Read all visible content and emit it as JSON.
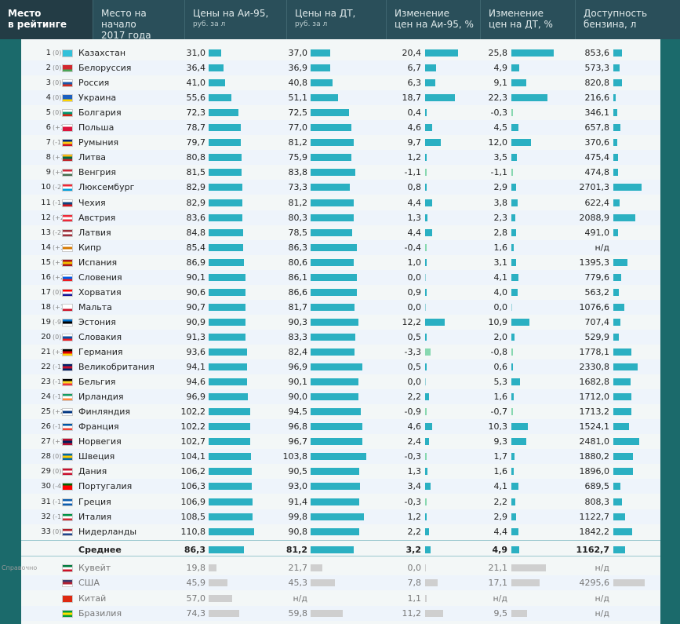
{
  "header": [
    {
      "title": "Место",
      "title2": "в рейтинге",
      "active": true
    },
    {
      "title": "Место на начало",
      "title2": "2017 года"
    },
    {
      "title": "Цены на Аи-95,",
      "sub": "руб. за л"
    },
    {
      "title": "Цены на ДТ,",
      "sub": "руб. за л"
    },
    {
      "title": "Изменение",
      "title2": "цен на Аи-95, %"
    },
    {
      "title": "Изменение",
      "title2": "цен на ДТ, %"
    },
    {
      "title": "Доступность",
      "title2": "бензина, л"
    }
  ],
  "rows": [
    {
      "rank": "1",
      "chg": "(0)",
      "name": "Казахстан",
      "ai95": 31.0,
      "ai95_t": "31,0",
      "dt": 37.0,
      "dt_t": "37,0",
      "pa": 20.4,
      "pa_t": "20,4",
      "pd": 25.8,
      "pd_t": "25,8",
      "acc": 853.6,
      "acc_t": "853,6",
      "flag": [
        "#33c1d9",
        "#33c1d9",
        "#33c1d9"
      ]
    },
    {
      "rank": "2",
      "chg": "(0)",
      "name": "Белоруссия",
      "ai95": 36.4,
      "ai95_t": "36,4",
      "dt": 36.9,
      "dt_t": "36,9",
      "pa": 6.7,
      "pa_t": "6,7",
      "pd": 4.9,
      "pd_t": "4,9",
      "acc": 573.3,
      "acc_t": "573,3",
      "flag": [
        "#d22730",
        "#d22730",
        "#4aa657"
      ]
    },
    {
      "rank": "3",
      "chg": "(0)",
      "name": "Россия",
      "ai95": 41.0,
      "ai95_t": "41,0",
      "dt": 40.8,
      "dt_t": "40,8",
      "pa": 6.3,
      "pa_t": "6,3",
      "pd": 9.1,
      "pd_t": "9,1",
      "acc": 820.8,
      "acc_t": "820,8",
      "flag": [
        "#ffffff",
        "#1c57a7",
        "#d52b1e"
      ]
    },
    {
      "rank": "4",
      "chg": "(0)",
      "name": "Украина",
      "ai95": 55.6,
      "ai95_t": "55,6",
      "dt": 51.1,
      "dt_t": "51,1",
      "pa": 18.7,
      "pa_t": "18,7",
      "pd": 22.3,
      "pd_t": "22,3",
      "acc": 216.6,
      "acc_t": "216,6",
      "flag": [
        "#1c5fbf",
        "#1c5fbf",
        "#ffd500"
      ]
    },
    {
      "rank": "5",
      "chg": "(0)",
      "name": "Болгария",
      "ai95": 72.3,
      "ai95_t": "72,3",
      "dt": 72.5,
      "dt_t": "72,5",
      "pa": 0.4,
      "pa_t": "0,4",
      "pd": -0.3,
      "pd_t": "-0,3",
      "acc": 346.1,
      "acc_t": "346,1",
      "flag": [
        "#ffffff",
        "#00966e",
        "#d62612"
      ]
    },
    {
      "rank": "6",
      "chg": "(+1)",
      "name": "Польша",
      "ai95": 78.7,
      "ai95_t": "78,7",
      "dt": 77.0,
      "dt_t": "77,0",
      "pa": 4.6,
      "pa_t": "4,6",
      "pd": 4.5,
      "pd_t": "4,5",
      "acc": 657.8,
      "acc_t": "657,8",
      "flag": [
        "#ffffff",
        "#dc143c",
        "#dc143c"
      ]
    },
    {
      "rank": "7",
      "chg": "(-1)",
      "name": "Румыния",
      "ai95": 79.7,
      "ai95_t": "79,7",
      "dt": 81.2,
      "dt_t": "81,2",
      "pa": 9.7,
      "pa_t": "9,7",
      "pd": 12.0,
      "pd_t": "12,0",
      "acc": 370.6,
      "acc_t": "370,6",
      "flag": [
        "#002b7f",
        "#fcd116",
        "#ce1126"
      ]
    },
    {
      "rank": "8",
      "chg": "(+1)",
      "name": "Литва",
      "ai95": 80.8,
      "ai95_t": "80,8",
      "dt": 75.9,
      "dt_t": "75,9",
      "pa": 1.2,
      "pa_t": "1,2",
      "pd": 3.5,
      "pd_t": "3,5",
      "acc": 475.4,
      "acc_t": "475,4",
      "flag": [
        "#fdb913",
        "#006a44",
        "#c1272d"
      ]
    },
    {
      "rank": "9",
      "chg": "(+4)",
      "name": "Венгрия",
      "ai95": 81.5,
      "ai95_t": "81,5",
      "dt": 83.8,
      "dt_t": "83,8",
      "pa": -1.1,
      "pa_t": "-1,1",
      "pd": -1.1,
      "pd_t": "-1,1",
      "acc": 474.8,
      "acc_t": "474,8",
      "flag": [
        "#ce2939",
        "#ffffff",
        "#477050"
      ]
    },
    {
      "rank": "10",
      "chg": "(-2)",
      "name": "Люксембург",
      "ai95": 82.9,
      "ai95_t": "82,9",
      "dt": 73.3,
      "dt_t": "73,3",
      "pa": 0.8,
      "pa_t": "0,8",
      "pd": 2.9,
      "pd_t": "2,9",
      "acc": 2701.3,
      "acc_t": "2701,3",
      "flag": [
        "#ed2939",
        "#ffffff",
        "#00a1de"
      ]
    },
    {
      "rank": "11",
      "chg": "(-1)",
      "name": "Чехия",
      "ai95": 82.9,
      "ai95_t": "82,9",
      "dt": 81.2,
      "dt_t": "81,2",
      "pa": 4.4,
      "pa_t": "4,4",
      "pd": 3.8,
      "pd_t": "3,8",
      "acc": 622.4,
      "acc_t": "622,4",
      "flag": [
        "#ffffff",
        "#11457e",
        "#d7141a"
      ]
    },
    {
      "rank": "12",
      "chg": "(+2)",
      "name": "Австрия",
      "ai95": 83.6,
      "ai95_t": "83,6",
      "dt": 80.3,
      "dt_t": "80,3",
      "pa": 1.3,
      "pa_t": "1,3",
      "pd": 2.3,
      "pd_t": "2,3",
      "acc": 2088.9,
      "acc_t": "2088,9",
      "flag": [
        "#ed2939",
        "#ffffff",
        "#ed2939"
      ]
    },
    {
      "rank": "13",
      "chg": "(-2)",
      "name": "Латвия",
      "ai95": 84.8,
      "ai95_t": "84,8",
      "dt": 78.5,
      "dt_t": "78,5",
      "pa": 4.4,
      "pa_t": "4,4",
      "pd": 2.8,
      "pd_t": "2,8",
      "acc": 491.0,
      "acc_t": "491,0",
      "flag": [
        "#9e3039",
        "#ffffff",
        "#9e3039"
      ]
    },
    {
      "rank": "14",
      "chg": "(+1)",
      "name": "Кипр",
      "ai95": 85.4,
      "ai95_t": "85,4",
      "dt": 86.3,
      "dt_t": "86,3",
      "pa": -0.4,
      "pa_t": "-0,4",
      "pd": 1.6,
      "pd_t": "1,6",
      "acc": "",
      "acc_t": "н/д",
      "flag": [
        "#ffffff",
        "#d57800",
        "#ffffff"
      ]
    },
    {
      "rank": "15",
      "chg": "(+1)",
      "name": "Испания",
      "ai95": 86.9,
      "ai95_t": "86,9",
      "dt": 80.6,
      "dt_t": "80,6",
      "pa": 1.0,
      "pa_t": "1,0",
      "pd": 3.1,
      "pd_t": "3,1",
      "acc": 1395.3,
      "acc_t": "1395,3",
      "flag": [
        "#aa151b",
        "#f1bf00",
        "#aa151b"
      ]
    },
    {
      "rank": "16",
      "chg": "(+2)",
      "name": "Словения",
      "ai95": 90.1,
      "ai95_t": "90,1",
      "dt": 86.1,
      "dt_t": "86,1",
      "pa": 0.0,
      "pa_t": "0,0",
      "pd": 4.1,
      "pd_t": "4,1",
      "acc": 779.6,
      "acc_t": "779,6",
      "flag": [
        "#ffffff",
        "#005ce6",
        "#ed1c24"
      ]
    },
    {
      "rank": "17",
      "chg": "(0)",
      "name": "Хорватия",
      "ai95": 90.6,
      "ai95_t": "90,6",
      "dt": 86.6,
      "dt_t": "86,6",
      "pa": 0.9,
      "pa_t": "0,9",
      "pd": 4.0,
      "pd_t": "4,0",
      "acc": 563.2,
      "acc_t": "563,2",
      "flag": [
        "#ff0000",
        "#ffffff",
        "#171796"
      ]
    },
    {
      "rank": "18",
      "chg": "(+1)",
      "name": "Мальта",
      "ai95": 90.7,
      "ai95_t": "90,7",
      "dt": 81.7,
      "dt_t": "81,7",
      "pa": 0.0,
      "pa_t": "0,0",
      "pd": 0.0,
      "pd_t": "0,0",
      "acc": 1076.6,
      "acc_t": "1076,6",
      "flag": [
        "#ffffff",
        "#ffffff",
        "#cf142b"
      ]
    },
    {
      "rank": "19",
      "chg": "(-9)",
      "name": "Эстония",
      "ai95": 90.9,
      "ai95_t": "90,9",
      "dt": 90.3,
      "dt_t": "90,3",
      "pa": 12.2,
      "pa_t": "12,2",
      "pd": 10.9,
      "pd_t": "10,9",
      "acc": 707.4,
      "acc_t": "707,4",
      "flag": [
        "#0072ce",
        "#000000",
        "#ffffff"
      ]
    },
    {
      "rank": "20",
      "chg": "(0)",
      "name": "Словакия",
      "ai95": 91.3,
      "ai95_t": "91,3",
      "dt": 83.3,
      "dt_t": "83,3",
      "pa": 0.5,
      "pa_t": "0,5",
      "pd": 2.0,
      "pd_t": "2,0",
      "acc": 529.9,
      "acc_t": "529,9",
      "flag": [
        "#ffffff",
        "#0b4ea2",
        "#ee1c25"
      ]
    },
    {
      "rank": "21",
      "chg": "(+3)",
      "name": "Германия",
      "ai95": 93.6,
      "ai95_t": "93,6",
      "dt": 82.4,
      "dt_t": "82,4",
      "pa": -3.3,
      "pa_t": "-3,3",
      "pd": -0.8,
      "pd_t": "-0,8",
      "acc": 1778.1,
      "acc_t": "1778,1",
      "flag": [
        "#000000",
        "#dd0000",
        "#ffce00"
      ]
    },
    {
      "rank": "22",
      "chg": "(-1)",
      "name": "Великобритания",
      "ai95": 94.1,
      "ai95_t": "94,1",
      "dt": 96.9,
      "dt_t": "96,9",
      "pa": 0.5,
      "pa_t": "0,5",
      "pd": 0.6,
      "pd_t": "0,6",
      "acc": 2330.8,
      "acc_t": "2330,8",
      "flag": [
        "#012169",
        "#c8102e",
        "#012169"
      ]
    },
    {
      "rank": "23",
      "chg": "(-1)",
      "name": "Бельгия",
      "ai95": 94.6,
      "ai95_t": "94,6",
      "dt": 90.1,
      "dt_t": "90,1",
      "pa": 0.0,
      "pa_t": "0,0",
      "pd": 5.3,
      "pd_t": "5,3",
      "acc": 1682.8,
      "acc_t": "1682,8",
      "flag": [
        "#000000",
        "#fdda24",
        "#ef3340"
      ]
    },
    {
      "rank": "24",
      "chg": "(-1)",
      "name": "Ирландия",
      "ai95": 96.9,
      "ai95_t": "96,9",
      "dt": 90.0,
      "dt_t": "90,0",
      "pa": 2.2,
      "pa_t": "2,2",
      "pd": 1.6,
      "pd_t": "1,6",
      "acc": 1712.0,
      "acc_t": "1712,0",
      "flag": [
        "#169b62",
        "#ffffff",
        "#ff883e"
      ]
    },
    {
      "rank": "25",
      "chg": "(+2)",
      "name": "Финляндия",
      "ai95": 102.2,
      "ai95_t": "102,2",
      "dt": 94.5,
      "dt_t": "94,5",
      "pa": -0.9,
      "pa_t": "-0,9",
      "pd": -0.7,
      "pd_t": "-0,7",
      "acc": 1713.2,
      "acc_t": "1713,2",
      "flag": [
        "#ffffff",
        "#003580",
        "#ffffff"
      ]
    },
    {
      "rank": "26",
      "chg": "(-1)",
      "name": "Франция",
      "ai95": 102.2,
      "ai95_t": "102,2",
      "dt": 96.8,
      "dt_t": "96,8",
      "pa": 4.6,
      "pa_t": "4,6",
      "pd": 10.3,
      "pd_t": "10,3",
      "acc": 1524.1,
      "acc_t": "1524,1",
      "flag": [
        "#0055a4",
        "#ffffff",
        "#ef4135"
      ]
    },
    {
      "rank": "27",
      "chg": "(+3)",
      "name": "Норвегия",
      "ai95": 102.7,
      "ai95_t": "102,7",
      "dt": 96.7,
      "dt_t": "96,7",
      "pa": 2.4,
      "pa_t": "2,4",
      "pd": 9.3,
      "pd_t": "9,3",
      "acc": 2481.0,
      "acc_t": "2481,0",
      "flag": [
        "#ba0c2f",
        "#00205b",
        "#ba0c2f"
      ]
    },
    {
      "rank": "28",
      "chg": "(0)",
      "name": "Швеция",
      "ai95": 104.1,
      "ai95_t": "104,1",
      "dt": 103.8,
      "dt_t": "103,8",
      "pa": -0.3,
      "pa_t": "-0,3",
      "pd": 1.7,
      "pd_t": "1,7",
      "acc": 1880.2,
      "acc_t": "1880,2",
      "flag": [
        "#006aa7",
        "#fecc00",
        "#006aa7"
      ]
    },
    {
      "rank": "29",
      "chg": "(0)",
      "name": "Дания",
      "ai95": 106.2,
      "ai95_t": "106,2",
      "dt": 90.5,
      "dt_t": "90,5",
      "pa": 1.3,
      "pa_t": "1,3",
      "pd": 1.6,
      "pd_t": "1,6",
      "acc": 1896.0,
      "acc_t": "1896,0",
      "flag": [
        "#c8102e",
        "#ffffff",
        "#c8102e"
      ]
    },
    {
      "rank": "30",
      "chg": "(-4)",
      "name": "Португалия",
      "ai95": 106.3,
      "ai95_t": "106,3",
      "dt": 93.0,
      "dt_t": "93,0",
      "pa": 3.4,
      "pa_t": "3,4",
      "pd": 4.1,
      "pd_t": "4,1",
      "acc": 689.5,
      "acc_t": "689,5",
      "flag": [
        "#006600",
        "#ff0000",
        "#ff0000"
      ]
    },
    {
      "rank": "31",
      "chg": "(-1)",
      "name": "Греция",
      "ai95": 106.9,
      "ai95_t": "106,9",
      "dt": 91.4,
      "dt_t": "91,4",
      "pa": -0.3,
      "pa_t": "-0,3",
      "pd": 2.2,
      "pd_t": "2,2",
      "acc": 808.3,
      "acc_t": "808,3",
      "flag": [
        "#0d5eaf",
        "#ffffff",
        "#0d5eaf"
      ]
    },
    {
      "rank": "32",
      "chg": "(-1)",
      "name": "Италия",
      "ai95": 108.5,
      "ai95_t": "108,5",
      "dt": 99.8,
      "dt_t": "99,8",
      "pa": 1.2,
      "pa_t": "1,2",
      "pd": 2.9,
      "pd_t": "2,9",
      "acc": 1122.7,
      "acc_t": "1122,7",
      "flag": [
        "#009246",
        "#ffffff",
        "#ce2b37"
      ]
    },
    {
      "rank": "33",
      "chg": "(0)",
      "name": "Нидерланды",
      "ai95": 110.8,
      "ai95_t": "110,8",
      "dt": 90.8,
      "dt_t": "90,8",
      "pa": 2.2,
      "pa_t": "2,2",
      "pd": 4.4,
      "pd_t": "4,4",
      "acc": 1842.2,
      "acc_t": "1842,2",
      "flag": [
        "#ae1c28",
        "#ffffff",
        "#21468b"
      ]
    }
  ],
  "average": {
    "label": "Среднее",
    "ai95": 86.3,
    "ai95_t": "86,3",
    "dt": 81.2,
    "dt_t": "81,2",
    "pa": 3.2,
    "pa_t": "3,2",
    "pd": 4.9,
    "pd_t": "4,9",
    "acc": 1162.7,
    "acc_t": "1162,7"
  },
  "reference_label": "Справочно",
  "reference": [
    {
      "name": "Кувейт",
      "ai95": 19.8,
      "ai95_t": "19,8",
      "dt": 21.7,
      "dt_t": "21,7",
      "pa": 0.0,
      "pa_t": "0,0",
      "pd": 21.1,
      "pd_t": "21,1",
      "acc": "",
      "acc_t": "н/д",
      "flag": [
        "#007a3d",
        "#ffffff",
        "#ce1126"
      ]
    },
    {
      "name": "США",
      "ai95": 45.9,
      "ai95_t": "45,9",
      "dt": 45.3,
      "dt_t": "45,3",
      "pa": 7.8,
      "pa_t": "7,8",
      "pd": 17.1,
      "pd_t": "17,1",
      "acc": 4295.6,
      "acc_t": "4295,6",
      "flag": [
        "#3c3b6e",
        "#b22234",
        "#ffffff"
      ]
    },
    {
      "name": "Китай",
      "ai95": 57.0,
      "ai95_t": "57,0",
      "dt": "",
      "dt_t": "н/д",
      "pa": 1.1,
      "pa_t": "1,1",
      "pd": "",
      "pd_t": "н/д",
      "acc": "",
      "acc_t": "н/д",
      "flag": [
        "#de2910",
        "#de2910",
        "#de2910"
      ]
    },
    {
      "name": "Бразилия",
      "ai95": 74.3,
      "ai95_t": "74,3",
      "dt": 59.8,
      "dt_t": "59,8",
      "pa": 11.2,
      "pa_t": "11,2",
      "pd": 9.5,
      "pd_t": "9,5",
      "acc": "",
      "acc_t": "н/д",
      "flag": [
        "#009c3b",
        "#ffdf00",
        "#009c3b"
      ]
    }
  ],
  "colors": {
    "bar": "#2bb0c2",
    "bar_ref": "#cfcfcf",
    "bar_negative": "#88d8b0",
    "header": "#2a4f5a"
  }
}
